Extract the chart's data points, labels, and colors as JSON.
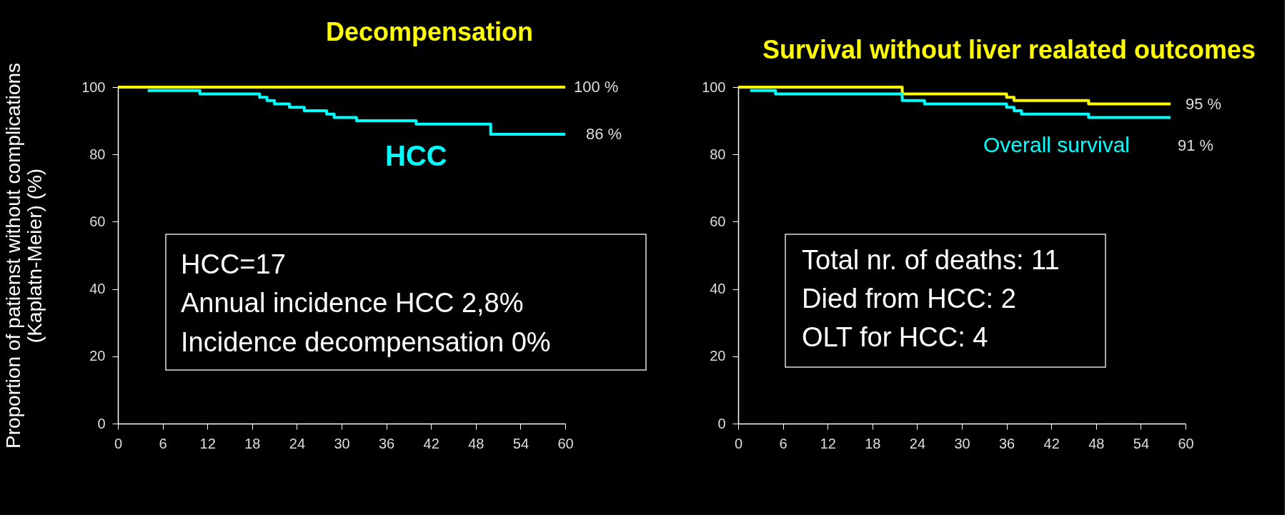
{
  "chart_data": [
    {
      "type": "step",
      "title": "Decompensation",
      "ylabel": "Proportion of patienst without complications\n(Kaplatn-Meier) (%)",
      "series": [
        {
          "color": "#ffff00",
          "x": [
            0,
            60
          ],
          "values": [
            100,
            100
          ]
        },
        {
          "name": "HCC",
          "color": "#00ffff",
          "x": [
            4,
            11,
            19,
            20,
            21,
            23,
            25,
            28,
            29,
            32,
            40,
            50,
            60
          ],
          "values": [
            99,
            98,
            97,
            96,
            95,
            94,
            93,
            92,
            91,
            90,
            89,
            86,
            86
          ]
        }
      ],
      "xlim": [
        0,
        60
      ],
      "xticks": [
        0,
        6,
        12,
        18,
        24,
        30,
        36,
        42,
        48,
        54,
        60
      ],
      "ylim": [
        0,
        100
      ],
      "yticks": [
        0,
        20,
        40,
        60,
        80,
        100
      ],
      "annotations": [
        "HCC=17",
        "Annual incidence HCC 2,8%",
        "Incidence decompensation 0%",
        "100 %",
        "86 %"
      ]
    },
    {
      "type": "step",
      "title": "Survival without  liver realated outcomes",
      "series": [
        {
          "color": "#ffff00",
          "x": [
            0,
            22,
            36,
            37,
            47,
            58
          ],
          "values": [
            100,
            98,
            97,
            96,
            95,
            95
          ]
        },
        {
          "name": "Overall survival",
          "color": "#00ffff",
          "x": [
            1.6,
            5,
            22,
            25,
            36,
            37,
            38,
            47,
            58
          ],
          "values": [
            99,
            98,
            96,
            95,
            94,
            93,
            92,
            91,
            91
          ]
        }
      ],
      "xlim": [
        0,
        60
      ],
      "xticks": [
        0,
        6,
        12,
        18,
        24,
        30,
        36,
        42,
        48,
        54,
        60
      ],
      "ylim": [
        0,
        100
      ],
      "yticks": [
        0,
        20,
        40,
        60,
        80,
        100
      ],
      "annotations": [
        "Total nr. of deaths: 11",
        "Died from HCC: 2",
        "OLT for HCC: 4",
        "95 %",
        "91 %"
      ]
    }
  ]
}
